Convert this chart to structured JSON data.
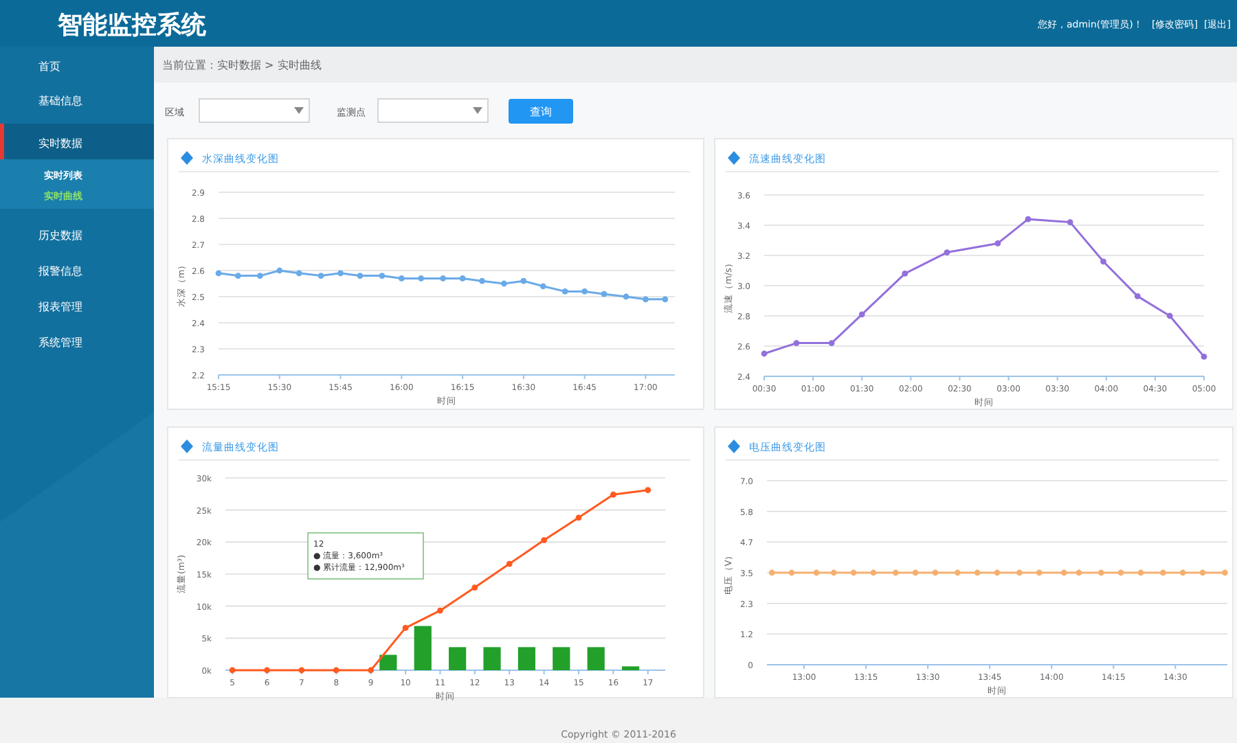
{
  "chart_data": [
    {
      "type": "other",
      "title": "智能监控系统",
      "annotations": [
        "您好，admin(管理员)！",
        "[修改密码]",
        "[退出]",
        "首页",
        "基础信息",
        "实时数据",
        "实时列表",
        "实时曲线",
        "历史数据",
        "报警信息",
        "报表管理",
        "系统管理",
        "当前位置：实时数据 > 实时曲线",
        "区域",
        "监测点",
        "查询",
        "Copyright © 2011-2016"
      ]
    },
    {
      "type": "line",
      "title": "水深曲线变化图",
      "xlabel": "时间",
      "ylabel": "水深（m）",
      "marker": "circle",
      "grid": "y",
      "xlim": [
        15.25,
        17.12
      ],
      "ylim": [
        2.2,
        2.9
      ],
      "xticks": [
        {
          "value": 15.25,
          "label": "15:15"
        },
        {
          "value": 15.5,
          "label": "15:30"
        },
        {
          "value": 15.75,
          "label": "15:45"
        },
        {
          "value": 16,
          "label": "16:00"
        },
        {
          "value": 16.25,
          "label": "16:15"
        },
        {
          "value": 16.5,
          "label": "16:30"
        },
        {
          "value": 16.75,
          "label": "16:45"
        },
        {
          "value": 17,
          "label": "17:00"
        }
      ],
      "yticks": [
        {
          "value": 2.2,
          "label": "2.2"
        },
        {
          "value": 2.3,
          "label": "2.3"
        },
        {
          "value": 2.4,
          "label": "2.4"
        },
        {
          "value": 2.5,
          "label": "2.5"
        },
        {
          "value": 2.6,
          "label": "2.6"
        },
        {
          "value": 2.7,
          "label": "2.7"
        },
        {
          "value": 2.8,
          "label": "2.8"
        },
        {
          "value": 2.9,
          "label": "2.9"
        }
      ],
      "series": [
        {
          "type": "line",
          "color": "#6aaae8",
          "x": [
            15.25,
            15.33,
            15.42,
            15.5,
            15.58,
            15.67,
            15.75,
            15.83,
            15.92,
            16,
            16.08,
            16.17,
            16.25,
            16.33,
            16.42,
            16.5,
            16.58,
            16.67,
            16.75,
            16.83,
            16.92,
            17,
            17.08
          ],
          "values": [
            2.59,
            2.58,
            2.58,
            2.6,
            2.59,
            2.58,
            2.59,
            2.58,
            2.58,
            2.57,
            2.57,
            2.57,
            2.57,
            2.56,
            2.55,
            2.56,
            2.54,
            2.52,
            2.52,
            2.51,
            2.5,
            2.49,
            2.49
          ]
        }
      ]
    },
    {
      "type": "line",
      "title": "流速曲线变化图",
      "xlabel": "时间",
      "ylabel": "流速（m/s）",
      "marker": "circle",
      "grid": "y",
      "xlim": [
        0.5,
        5
      ],
      "ylim": [
        2.4,
        3.6
      ],
      "xticks": [
        {
          "value": 0.5,
          "label": "00:30"
        },
        {
          "value": 1,
          "label": "01:00"
        },
        {
          "value": 1.5,
          "label": "01:30"
        },
        {
          "value": 2,
          "label": "02:00"
        },
        {
          "value": 2.5,
          "label": "02:30"
        },
        {
          "value": 3,
          "label": "03:00"
        },
        {
          "value": 3.5,
          "label": "03:30"
        },
        {
          "value": 4,
          "label": "04:00"
        },
        {
          "value": 4.5,
          "label": "04:30"
        },
        {
          "value": 5,
          "label": "05:00"
        }
      ],
      "yticks": [
        {
          "value": 2.4,
          "label": "2.4"
        },
        {
          "value": 2.6,
          "label": "2.6"
        },
        {
          "value": 2.8,
          "label": "2.8"
        },
        {
          "value": 3,
          "label": "3.0"
        },
        {
          "value": 3.2,
          "label": "3.2"
        },
        {
          "value": 3.4,
          "label": "3.4"
        },
        {
          "value": 3.6,
          "label": "3.6"
        }
      ],
      "series": [
        {
          "type": "line",
          "color": "#9370db",
          "x": [
            0.5,
            0.83,
            1.19,
            1.5,
            1.94,
            2.37,
            2.89,
            3.2,
            3.63,
            3.97,
            4.32,
            4.65,
            5
          ],
          "values": [
            2.55,
            2.62,
            2.62,
            2.81,
            3.08,
            3.22,
            3.28,
            3.44,
            3.42,
            3.16,
            2.93,
            2.8,
            2.53
          ]
        }
      ]
    },
    {
      "type": "line",
      "title": "流量曲线变化图",
      "xlabel": "时间",
      "ylabel": "流量(m³)",
      "marker": "circle",
      "grid": "y",
      "xlim": [
        4.8,
        17.5
      ],
      "ylim": [
        0,
        30000
      ],
      "xticks": [
        5,
        6,
        7,
        8,
        9,
        10,
        11,
        12,
        13,
        14,
        15,
        16,
        17
      ],
      "yticks": [
        {
          "value": 0,
          "label": "0k"
        },
        {
          "value": 5000,
          "label": "5k"
        },
        {
          "value": 10000,
          "label": "10k"
        },
        {
          "value": 15000,
          "label": "15k"
        },
        {
          "value": 20000,
          "label": "20k"
        },
        {
          "value": 25000,
          "label": "25k"
        },
        {
          "value": 30000,
          "label": "30k"
        }
      ],
      "series": [
        {
          "type": "bar",
          "color": "#22a02a",
          "x": [
            9.5,
            10.5,
            11.5,
            12.5,
            13.5,
            14.5,
            15.5,
            16.5
          ],
          "values": [
            2400,
            6900,
            3600,
            3600,
            3600,
            3600,
            3600,
            600
          ]
        },
        {
          "type": "line",
          "color": "#ff5a1f",
          "x": [
            5,
            6,
            7,
            8,
            9,
            10,
            11,
            12,
            13,
            14,
            15,
            16,
            17
          ],
          "values": [
            0,
            0,
            0,
            0,
            0,
            6600,
            9300,
            12900,
            16600,
            20300,
            23800,
            27400,
            28100
          ]
        }
      ],
      "annotations": [
        "12\n● 流量：3,600m³\n● 累计流量：12,900m³"
      ]
    },
    {
      "type": "line",
      "title": "电压曲线变化图",
      "xlabel": "时间",
      "ylabel": "电压（V）",
      "marker": "circle",
      "grid": "y",
      "xlim": [
        12.85,
        14.71
      ],
      "ylim": [
        0,
        7
      ],
      "xticks": [
        {
          "value": 13,
          "label": "13:00"
        },
        {
          "value": 13.25,
          "label": "13:15"
        },
        {
          "value": 13.5,
          "label": "13:30"
        },
        {
          "value": 13.75,
          "label": "13:45"
        },
        {
          "value": 14,
          "label": "14:00"
        },
        {
          "value": 14.25,
          "label": "14:15"
        },
        {
          "value": 14.5,
          "label": "14:30"
        }
      ],
      "yticks": [
        {
          "value": 0,
          "label": "0"
        },
        {
          "value": 1.17,
          "label": "1.2"
        },
        {
          "value": 2.33,
          "label": "2.3"
        },
        {
          "value": 3.5,
          "label": "3.5"
        },
        {
          "value": 4.67,
          "label": "4.7"
        },
        {
          "value": 5.83,
          "label": "5.8"
        },
        {
          "value": 7,
          "label": "7.0"
        }
      ],
      "series": [
        {
          "type": "line",
          "color": "#f5b070",
          "x": [
            12.87,
            12.95,
            13.05,
            13.12,
            13.2,
            13.28,
            13.37,
            13.45,
            13.53,
            13.62,
            13.7,
            13.78,
            13.87,
            13.95,
            14.05,
            14.11,
            14.2,
            14.28,
            14.36,
            14.45,
            14.53,
            14.61,
            14.7
          ],
          "values": [
            3.5,
            3.5,
            3.5,
            3.5,
            3.5,
            3.5,
            3.5,
            3.5,
            3.5,
            3.5,
            3.5,
            3.5,
            3.5,
            3.5,
            3.5,
            3.5,
            3.5,
            3.5,
            3.5,
            3.5,
            3.5,
            3.5,
            3.5
          ]
        }
      ]
    }
  ]
}
